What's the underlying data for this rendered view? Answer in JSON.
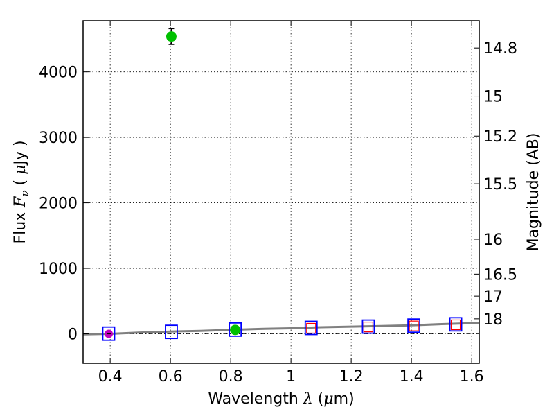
{
  "chart_data": {
    "type": "scatter",
    "xlabel": {
      "prefix": "Wavelength  ",
      "sym": "λ",
      "unit": " (",
      "unit_sym": "μ",
      "unit_end": "m)"
    },
    "ylabel": {
      "prefix": "Flux  ",
      "sym": "F",
      "sub": "ν",
      "unit": "  ( ",
      "unit_sym": "μ",
      "unit_end": "Jy )"
    },
    "y2label": "Magnitude (AB)",
    "xlim": [
      0.31,
      1.625
    ],
    "ylim": [
      -450,
      4780
    ],
    "xticks": [
      0.4,
      0.6,
      0.8,
      1.0,
      1.2,
      1.4,
      1.6
    ],
    "xtick_labels": [
      "0.4",
      "0.6",
      "0.8",
      "1",
      "1.2",
      "1.4",
      "1.6"
    ],
    "yticks": [
      0,
      1000,
      2000,
      3000,
      4000
    ],
    "ytick_labels": [
      "0",
      "1000",
      "2000",
      "3000",
      "4000"
    ],
    "mag_ticks": [
      14.8,
      15,
      15.2,
      15.5,
      16,
      16.5,
      17,
      18
    ],
    "mag_tick_labels": [
      "14.8",
      "15",
      "15.2",
      "15.5",
      "16",
      "16.5",
      "17",
      "18"
    ],
    "grid": true,
    "colors": {
      "model_line": "#808080",
      "observed": "#00c000",
      "model_box": "#0000ff",
      "model_box_inner": "#ff0000",
      "upper_limit": "#c000c0",
      "zero_line": "#000000"
    },
    "model_sed": {
      "x": [
        0.31,
        0.4,
        0.5,
        0.6,
        0.7,
        0.8,
        0.9,
        1.0,
        1.1,
        1.2,
        1.3,
        1.4,
        1.5,
        1.625
      ],
      "y": [
        -8,
        0,
        20,
        35,
        45,
        60,
        75,
        85,
        100,
        110,
        120,
        130,
        148,
        165
      ]
    },
    "model_photometry_outer": [
      {
        "x": 0.395,
        "y": 3
      },
      {
        "x": 0.603,
        "y": 30
      },
      {
        "x": 0.815,
        "y": 65
      },
      {
        "x": 1.067,
        "y": 90
      },
      {
        "x": 1.257,
        "y": 110
      },
      {
        "x": 1.408,
        "y": 125
      },
      {
        "x": 1.547,
        "y": 145
      }
    ],
    "model_photometry_inner": [
      {
        "x": 1.067,
        "y": 85
      },
      {
        "x": 1.257,
        "y": 105
      },
      {
        "x": 1.408,
        "y": 120
      },
      {
        "x": 1.547,
        "y": 138
      }
    ],
    "observed_points": [
      {
        "x": 0.603,
        "y": 4540,
        "err": 120
      },
      {
        "x": 0.815,
        "y": 60,
        "err": 0
      }
    ],
    "upper_limit_points": [
      {
        "x": 0.395,
        "y": 0
      }
    ]
  }
}
